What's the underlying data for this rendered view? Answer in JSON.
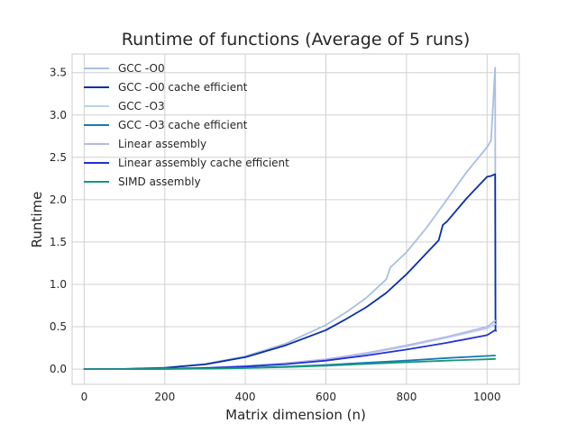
{
  "chart_data": {
    "type": "line",
    "title": "Runtime of functions (Average of 5 runs)",
    "xlabel": "Matrix dimension (n)",
    "ylabel": "Runtime",
    "xlim": [
      -30,
      1080
    ],
    "ylim": [
      -0.18,
      3.72
    ],
    "xticks": [
      0,
      200,
      400,
      600,
      800,
      1000
    ],
    "yticks": [
      0.0,
      0.5,
      1.0,
      1.5,
      2.0,
      2.5,
      3.0,
      3.5
    ],
    "xtick_labels": [
      "0",
      "200",
      "400",
      "600",
      "800",
      "1000"
    ],
    "ytick_labels": [
      "0.0",
      "0.5",
      "1.0",
      "1.5",
      "2.0",
      "2.5",
      "3.0",
      "3.5"
    ],
    "grid": true,
    "legend_position": "top-left",
    "series": [
      {
        "name": "GCC -O0",
        "color": "#a8bfe4",
        "x": [
          0,
          100,
          200,
          300,
          400,
          500,
          600,
          650,
          700,
          750,
          760,
          800,
          850,
          900,
          950,
          1000,
          1010,
          1020,
          1021,
          1022
        ],
        "y": [
          0.0,
          0.002,
          0.015,
          0.06,
          0.15,
          0.3,
          0.52,
          0.67,
          0.84,
          1.06,
          1.2,
          1.38,
          1.67,
          2.0,
          2.33,
          2.62,
          2.7,
          3.56,
          0.6,
          0.55
        ]
      },
      {
        "name": "GCC -O0 cache efficient",
        "color": "#0a2fa8",
        "x": [
          0,
          100,
          200,
          300,
          400,
          500,
          600,
          650,
          700,
          750,
          800,
          850,
          880,
          890,
          900,
          950,
          1000,
          1010,
          1020,
          1021,
          1022
        ],
        "y": [
          0.0,
          0.002,
          0.014,
          0.055,
          0.14,
          0.28,
          0.46,
          0.59,
          0.73,
          0.9,
          1.12,
          1.37,
          1.52,
          1.7,
          1.74,
          2.02,
          2.27,
          2.28,
          2.3,
          0.46,
          0.45
        ]
      },
      {
        "name": "GCC -O3",
        "color": "#b7d2ea",
        "x": [
          0,
          100,
          200,
          300,
          400,
          500,
          600,
          700,
          800,
          900,
          1000,
          1020
        ],
        "y": [
          0.0,
          0.001,
          0.004,
          0.014,
          0.033,
          0.065,
          0.11,
          0.18,
          0.27,
          0.37,
          0.48,
          0.53
        ]
      },
      {
        "name": "GCC -O3 cache efficient",
        "color": "#1b78b8",
        "x": [
          0,
          100,
          200,
          300,
          400,
          500,
          600,
          700,
          800,
          900,
          1000,
          1020
        ],
        "y": [
          0.0,
          0.0,
          0.002,
          0.006,
          0.014,
          0.028,
          0.048,
          0.075,
          0.1,
          0.13,
          0.155,
          0.16
        ]
      },
      {
        "name": "Linear assembly",
        "color": "#b6b9ea",
        "x": [
          0,
          100,
          200,
          300,
          400,
          500,
          600,
          700,
          800,
          900,
          1000,
          1020
        ],
        "y": [
          0.0,
          0.001,
          0.005,
          0.016,
          0.036,
          0.07,
          0.115,
          0.19,
          0.28,
          0.38,
          0.5,
          0.57
        ]
      },
      {
        "name": "Linear assembly cache efficient",
        "color": "#2331d6",
        "x": [
          0,
          100,
          200,
          300,
          400,
          500,
          600,
          700,
          800,
          900,
          1000,
          1020
        ],
        "y": [
          0.0,
          0.001,
          0.003,
          0.012,
          0.03,
          0.058,
          0.1,
          0.16,
          0.23,
          0.31,
          0.4,
          0.46
        ]
      },
      {
        "name": "SIMD assembly",
        "color": "#16987a",
        "x": [
          0,
          100,
          200,
          300,
          400,
          500,
          600,
          700,
          800,
          900,
          1000,
          1020
        ],
        "y": [
          0.0,
          0.0,
          0.002,
          0.005,
          0.012,
          0.024,
          0.04,
          0.06,
          0.08,
          0.1,
          0.115,
          0.12
        ]
      }
    ]
  }
}
